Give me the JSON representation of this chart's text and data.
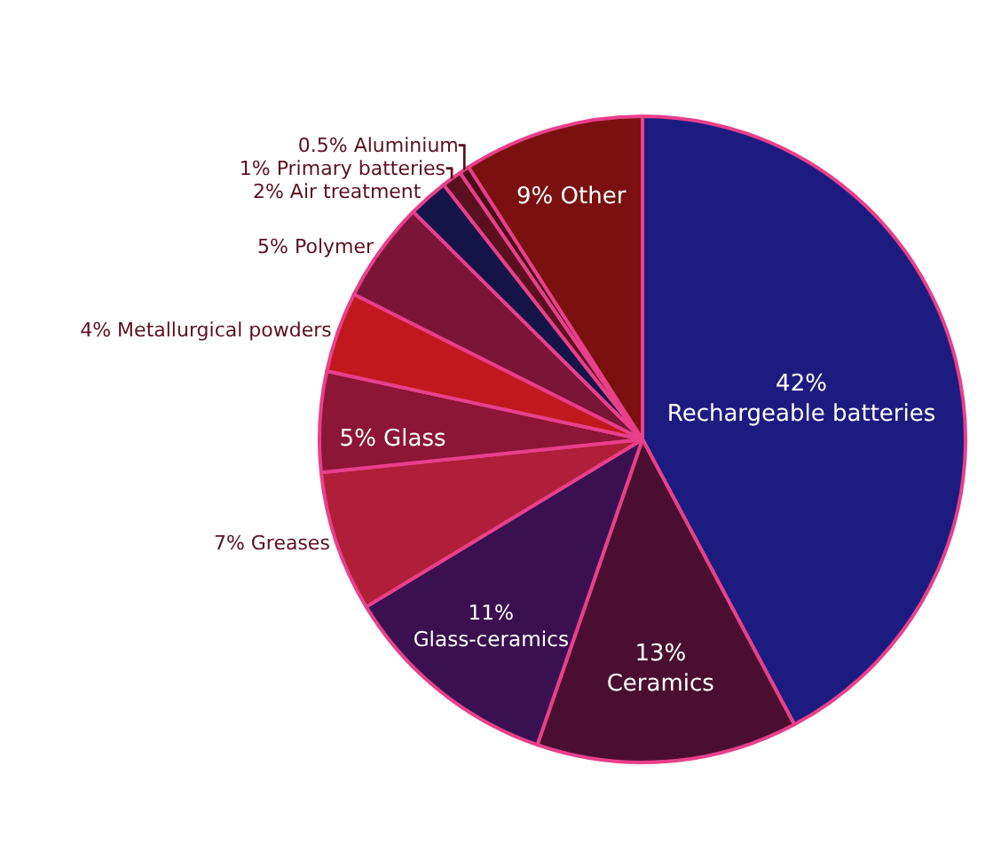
{
  "chart_data": {
    "type": "pie",
    "categories": [
      "Rechargeable batteries",
      "Ceramics",
      "Glass-ceramics",
      "Greases",
      "Glass",
      "Metallurgical powders",
      "Polymer",
      "Air treatment",
      "Primary batteries",
      "Aluminium",
      "Other"
    ],
    "values": [
      42,
      13,
      11,
      7,
      5,
      4,
      5,
      2,
      1,
      0.5,
      9
    ],
    "value_labels": [
      "42%",
      "13%",
      "11%",
      "7%",
      "5%",
      "4%",
      "5%",
      "2%",
      "1%",
      "0.5%",
      "9%"
    ],
    "colors": [
      "#1c1c80",
      "#4a0f30",
      "#3a1050",
      "#b01e3a",
      "#8c1538",
      "#c0181c",
      "#7a1538",
      "#141448",
      "#5a1020",
      "#4a0a18",
      "#7a1010"
    ],
    "legend": false
  }
}
